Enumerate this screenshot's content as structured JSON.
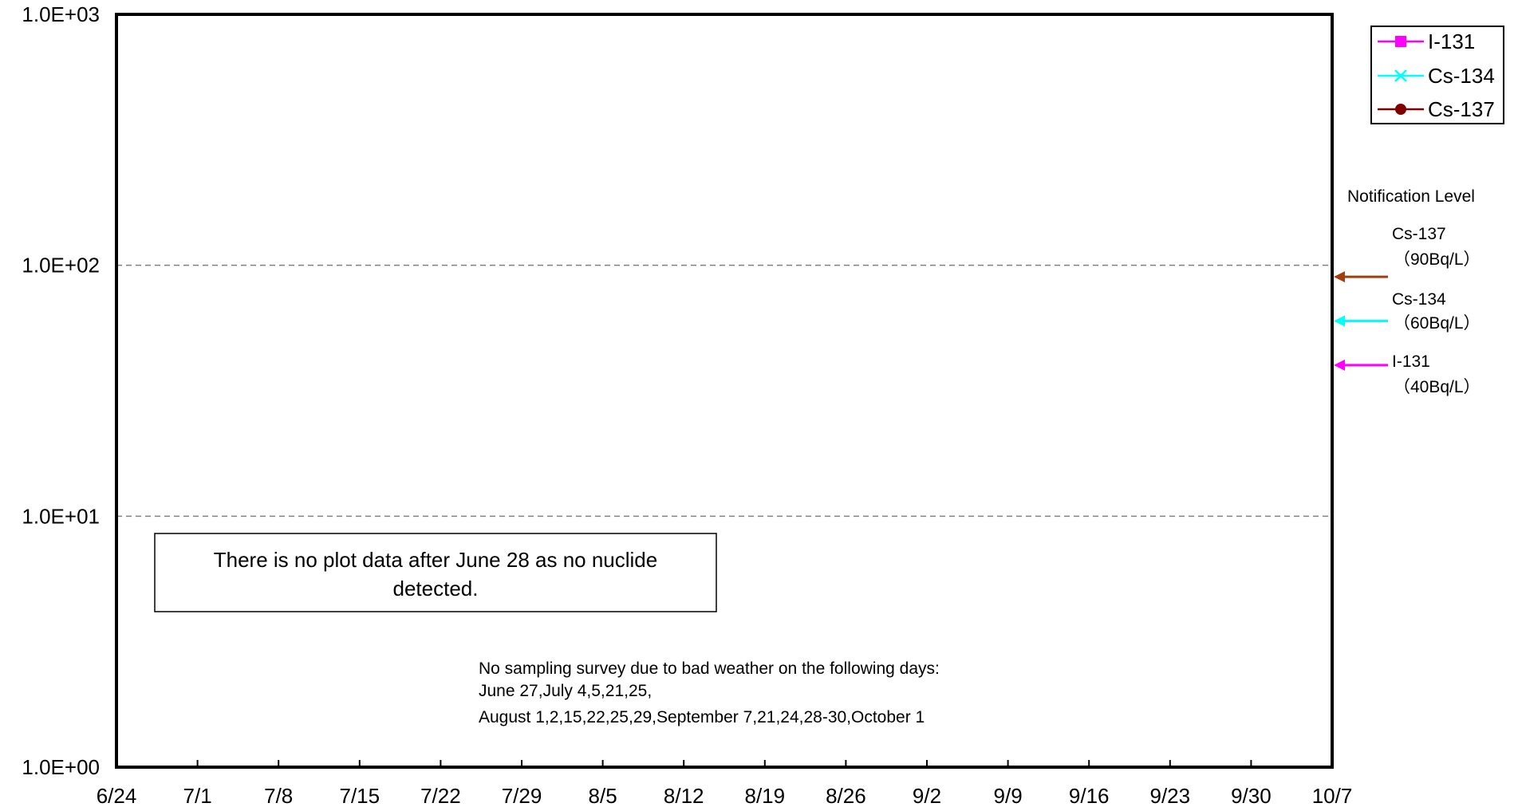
{
  "chart_data": {
    "type": "line",
    "title": "",
    "xlabel": "",
    "ylabel": "",
    "y_scale": "log",
    "ylim": [
      1,
      1000
    ],
    "y_ticks": [
      {
        "value": 1,
        "label": "1.0E+00"
      },
      {
        "value": 10,
        "label": "1.0E+01"
      },
      {
        "value": 100,
        "label": "1.0E+02"
      },
      {
        "value": 1000,
        "label": "1.0E+03"
      }
    ],
    "x_ticks": [
      "6/24",
      "7/1",
      "7/8",
      "7/15",
      "7/22",
      "7/29",
      "8/5",
      "8/12",
      "8/19",
      "8/26",
      "9/2",
      "9/9",
      "9/16",
      "9/23",
      "9/30",
      "10/7"
    ],
    "y_gridlines": [
      10,
      100
    ],
    "grid": "dashed horizontal at 1.0E+01 and 1.0E+02",
    "legend": {
      "placement": "top-right outside",
      "entries": [
        {
          "name": "I-131",
          "color": "#ff00ff",
          "marker": "square"
        },
        {
          "name": "Cs-134",
          "color": "#00ffff",
          "marker": "x"
        },
        {
          "name": "Cs-137",
          "color": "#800000",
          "marker": "circle"
        }
      ]
    },
    "series": [
      {
        "name": "I-131",
        "values": []
      },
      {
        "name": "Cs-134",
        "values": []
      },
      {
        "name": "Cs-137",
        "values": []
      }
    ],
    "notification": {
      "heading": "Notification Level",
      "levels": [
        {
          "nuclide": "Cs-137",
          "label": "（90Bq/L）",
          "value": 90,
          "color": "#a0410d"
        },
        {
          "nuclide": "Cs-134",
          "label": "（60Bq/L）",
          "value": 60,
          "color": "#00ffff"
        },
        {
          "nuclide": "I-131",
          "label": "（40Bq/L）",
          "value": 40,
          "color": "#ff00ff"
        }
      ]
    },
    "annotations": {
      "no_data_box": [
        "There is no plot data after June 28 as no nuclide",
        "detected."
      ],
      "weather_note": [
        "No sampling survey due to bad weather on the following days:",
        "June 27,July 4,5,21,25,",
        "August 1,2,15,22,25,29,September 7,21,24,28-30,October 1"
      ]
    }
  }
}
